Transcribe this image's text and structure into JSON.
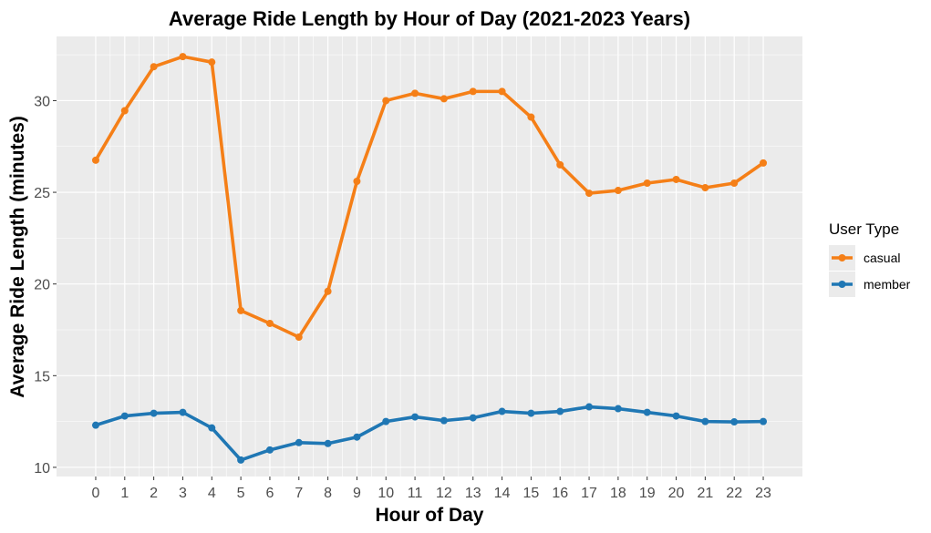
{
  "chart_data": {
    "type": "line",
    "title": "Average Ride Length by Hour of Day (2021-2023 Years)",
    "xlabel": "Hour of Day",
    "ylabel": "Average Ride Length (minutes)",
    "x": [
      0,
      1,
      2,
      3,
      4,
      5,
      6,
      7,
      8,
      9,
      10,
      11,
      12,
      13,
      14,
      15,
      16,
      17,
      18,
      19,
      20,
      21,
      22,
      23
    ],
    "x_tick_labels": [
      "0",
      "1",
      "2",
      "3",
      "4",
      "5",
      "6",
      "7",
      "8",
      "9",
      "10",
      "11",
      "12",
      "13",
      "14",
      "15",
      "16",
      "17",
      "18",
      "19",
      "20",
      "21",
      "22",
      "23"
    ],
    "ylim": [
      9.5,
      33.5
    ],
    "y_ticks": [
      10,
      15,
      20,
      25,
      30
    ],
    "y_tick_labels": [
      "10",
      "15",
      "20",
      "25",
      "30"
    ],
    "grid": true,
    "legend": {
      "title": "User Type",
      "position": "right"
    },
    "series": [
      {
        "name": "casual",
        "color": "#F57F17",
        "values": [
          26.75,
          29.45,
          31.85,
          32.4,
          32.1,
          18.55,
          17.85,
          17.1,
          19.6,
          25.6,
          30.0,
          30.4,
          30.1,
          30.5,
          30.5,
          29.1,
          26.5,
          24.95,
          25.1,
          25.5,
          25.7,
          25.25,
          25.5,
          26.6
        ]
      },
      {
        "name": "member",
        "color": "#1F77B4",
        "values": [
          12.3,
          12.8,
          12.95,
          13.0,
          12.15,
          10.4,
          10.95,
          11.35,
          11.3,
          11.65,
          12.5,
          12.75,
          12.55,
          12.7,
          13.05,
          12.95,
          13.05,
          13.3,
          13.2,
          13.0,
          12.8,
          12.5,
          12.48,
          12.5
        ]
      }
    ]
  }
}
